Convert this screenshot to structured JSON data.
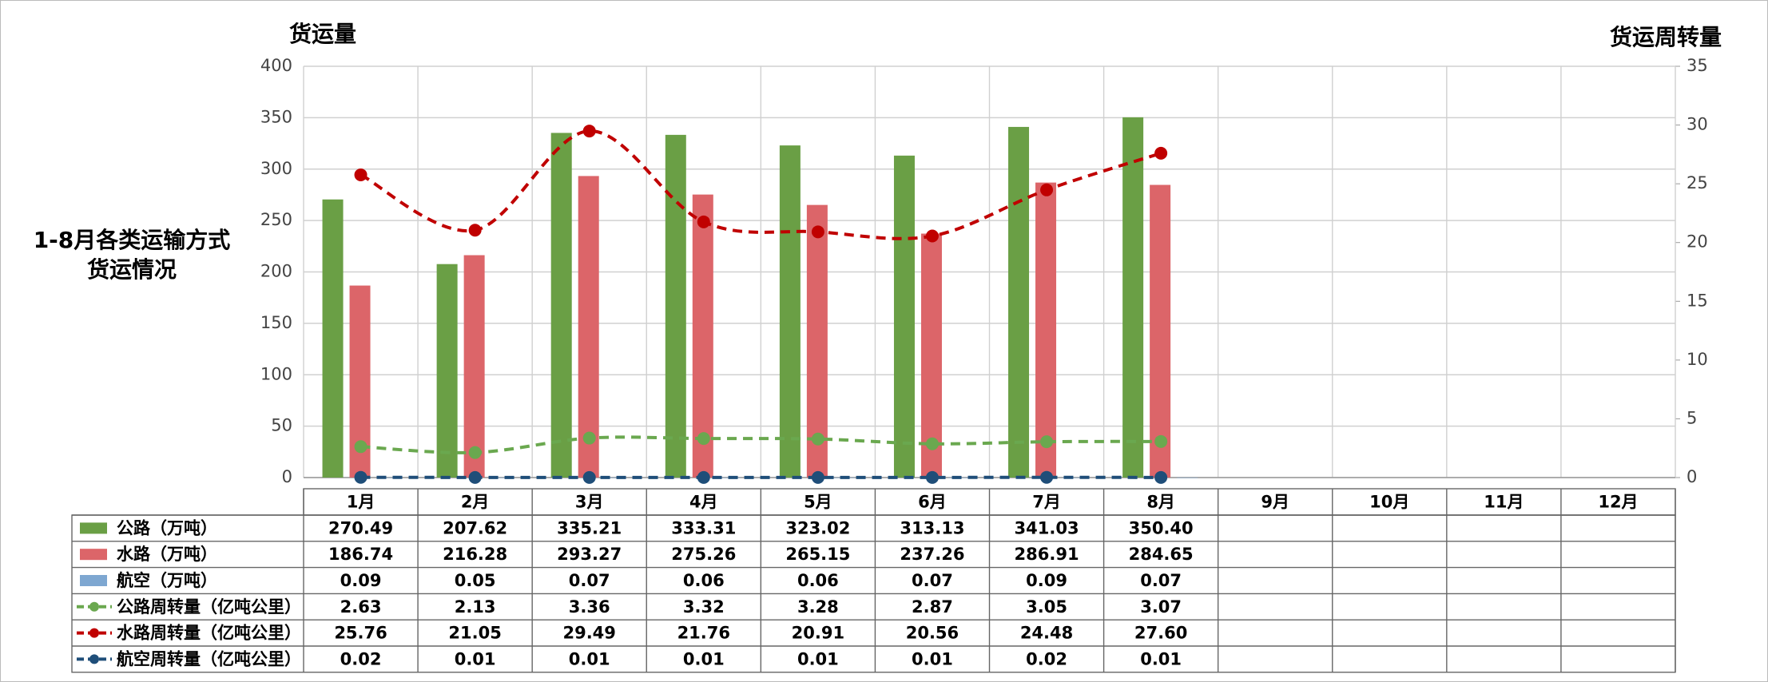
{
  "chart_data": {
    "type": "bar",
    "title": [
      "1-8月各类运输方式",
      "货运情况"
    ],
    "y_label": "货运量",
    "y2_label": "货运周转量",
    "categories": [
      "1月",
      "2月",
      "3月",
      "4月",
      "5月",
      "6月",
      "7月",
      "8月",
      "9月",
      "10月",
      "11月",
      "12月"
    ],
    "ylim": [
      0,
      400
    ],
    "yticks": [
      0,
      50,
      100,
      150,
      200,
      250,
      300,
      350,
      400
    ],
    "y2lim": [
      0,
      35
    ],
    "y2ticks": [
      0,
      5,
      10,
      15,
      20,
      25,
      30,
      35
    ],
    "grid": true,
    "series": [
      {
        "name": "公路（万吨）",
        "type": "bar",
        "color": "#6a9f45",
        "values": [
          270.49,
          207.62,
          335.21,
          333.31,
          323.02,
          313.13,
          341.03,
          350.4,
          null,
          null,
          null,
          null
        ],
        "value_labels": [
          "270.49",
          "207.62",
          "335.21",
          "333.31",
          "323.02",
          "313.13",
          "341.03",
          "350.40",
          null,
          null,
          null,
          null
        ]
      },
      {
        "name": "水路（万吨）",
        "type": "bar",
        "color": "#dc6569",
        "values": [
          186.74,
          216.28,
          293.27,
          275.26,
          265.15,
          237.26,
          286.91,
          284.65,
          null,
          null,
          null,
          null
        ],
        "value_labels": [
          "186.74",
          "216.28",
          "293.27",
          "275.26",
          "265.15",
          "237.26",
          "286.91",
          "284.65",
          null,
          null,
          null,
          null
        ]
      },
      {
        "name": "航空（万吨）",
        "type": "bar",
        "color": "#7ea7d1",
        "values": [
          0.09,
          0.05,
          0.07,
          0.06,
          0.06,
          0.07,
          0.09,
          0.07,
          null,
          null,
          null,
          null
        ],
        "value_labels": [
          "0.09",
          "0.05",
          "0.07",
          "0.06",
          "0.06",
          "0.07",
          "0.09",
          "0.07",
          null,
          null,
          null,
          null
        ]
      },
      {
        "name": "公路周转量（亿吨公里）",
        "type": "line",
        "axis": "y2",
        "color": "#6aa84f",
        "values": [
          2.63,
          2.13,
          3.36,
          3.32,
          3.28,
          2.87,
          3.05,
          3.07,
          null,
          null,
          null,
          null
        ],
        "value_labels": [
          "2.63",
          "2.13",
          "3.36",
          "3.32",
          "3.28",
          "2.87",
          "3.05",
          "3.07",
          null,
          null,
          null,
          null
        ]
      },
      {
        "name": "水路周转量（亿吨公里）",
        "type": "line",
        "axis": "y2",
        "color": "#c00000",
        "values": [
          25.76,
          21.05,
          29.49,
          21.76,
          20.91,
          20.56,
          24.48,
          27.6,
          null,
          null,
          null,
          null
        ],
        "value_labels": [
          "25.76",
          "21.05",
          "29.49",
          "21.76",
          "20.91",
          "20.56",
          "24.48",
          "27.60",
          null,
          null,
          null,
          null
        ]
      },
      {
        "name": "航空周转量（亿吨公里）",
        "type": "line",
        "axis": "y2",
        "color": "#1f4e79",
        "values": [
          0.02,
          0.01,
          0.01,
          0.01,
          0.01,
          0.01,
          0.02,
          0.01,
          null,
          null,
          null,
          null
        ],
        "value_labels": [
          "0.02",
          "0.01",
          "0.01",
          "0.01",
          "0.01",
          "0.01",
          "0.02",
          "0.01",
          null,
          null,
          null,
          null
        ]
      }
    ]
  }
}
